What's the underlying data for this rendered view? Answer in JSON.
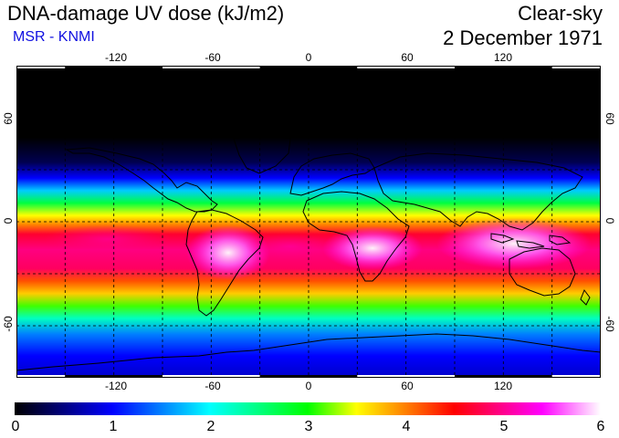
{
  "header": {
    "title": "DNA-damage UV dose (kJ/m2)",
    "source": "MSR - KNMI",
    "condition": "Clear-sky",
    "date": "2 December 1971"
  },
  "map": {
    "projection": "equirectangular",
    "lon_range": [
      -180,
      180
    ],
    "lat_range": [
      -90,
      90
    ],
    "lon_ticks": [
      "-120",
      "-60",
      "0",
      "60",
      "120"
    ],
    "lat_ticks": [
      "60",
      "0",
      "-60"
    ],
    "grid": "dashed every 30 degrees",
    "field": "UV dose increasing toward southern subtropics; max over South America, southern Africa, Indonesia/Australia"
  },
  "colorbar": {
    "min": 0,
    "max": 6,
    "tick_labels": [
      "0",
      "1",
      "2",
      "3",
      "4",
      "5",
      "6"
    ],
    "colors": [
      "#000000",
      "#0000ff",
      "#00ffff",
      "#00ff00",
      "#ffff00",
      "#ff0000",
      "#ff00ff",
      "#ffffff"
    ]
  }
}
